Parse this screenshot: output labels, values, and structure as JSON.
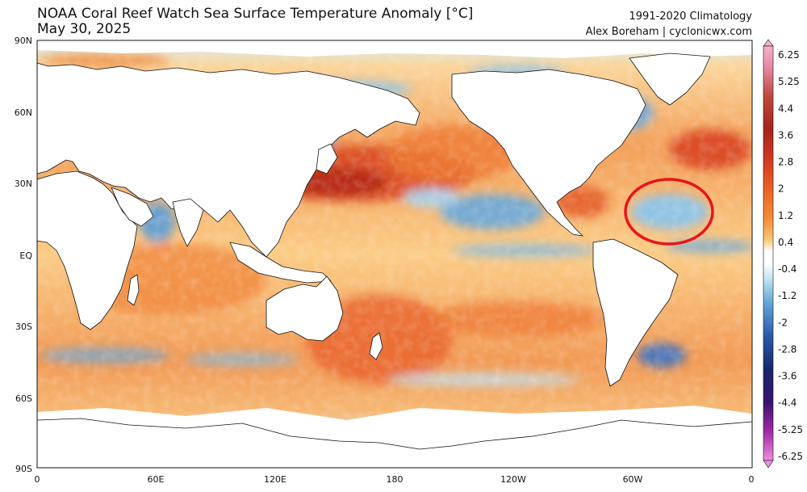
{
  "header": {
    "title": "NOAA Coral Reef Watch Sea Surface Temperature Anomaly [°C]",
    "date": "May 30, 2025",
    "climatology": "1991-2020 Climatology",
    "credit": "Alex Boreham | cyclonicwx.com"
  },
  "axes": {
    "lat_labels": [
      "90N",
      "60N",
      "30N",
      "EQ",
      "30S",
      "60S",
      "90S"
    ],
    "lon_labels": [
      "0",
      "60E",
      "120E",
      "180",
      "120W",
      "60W",
      "0"
    ]
  },
  "colorbar": {
    "labels": [
      "6.25",
      "5.25",
      "4.4",
      "3.6",
      "2.8",
      "2",
      "1.2",
      "0.4",
      "-0.4",
      "-1.2",
      "-2",
      "-2.8",
      "-3.6",
      "-4.4",
      "-5.25",
      "-6.25"
    ],
    "colors": [
      "#f4b1cc",
      "#e78aa4",
      "#c04a3a",
      "#a5231c",
      "#c8301f",
      "#e0451f",
      "#ee6a25",
      "#f58f3a",
      "#f8ae54",
      "#fbcb7b",
      "#fde5a8",
      "#ffffff",
      "#c7e5f4",
      "#95cbea",
      "#62a6d8",
      "#3c7ec4",
      "#2b5aa8",
      "#1e3f88",
      "#15286a",
      "#3c1270",
      "#6a1a88",
      "#a02aa6",
      "#d456c8",
      "#ee8de0"
    ]
  },
  "annotation": {
    "shape": "red ellipse",
    "color": "#e8141a",
    "region": "subtropical North Atlantic, cool anomaly"
  },
  "map_colors": {
    "land": "#ffffff",
    "coast": "#111111",
    "warm_strong": "#c8351c",
    "warm": "#f08a3c",
    "warm_light": "#f9c47c",
    "neutral": "#fde8bf",
    "cool_light": "#bfe0f3",
    "cool": "#5d9fd6"
  }
}
